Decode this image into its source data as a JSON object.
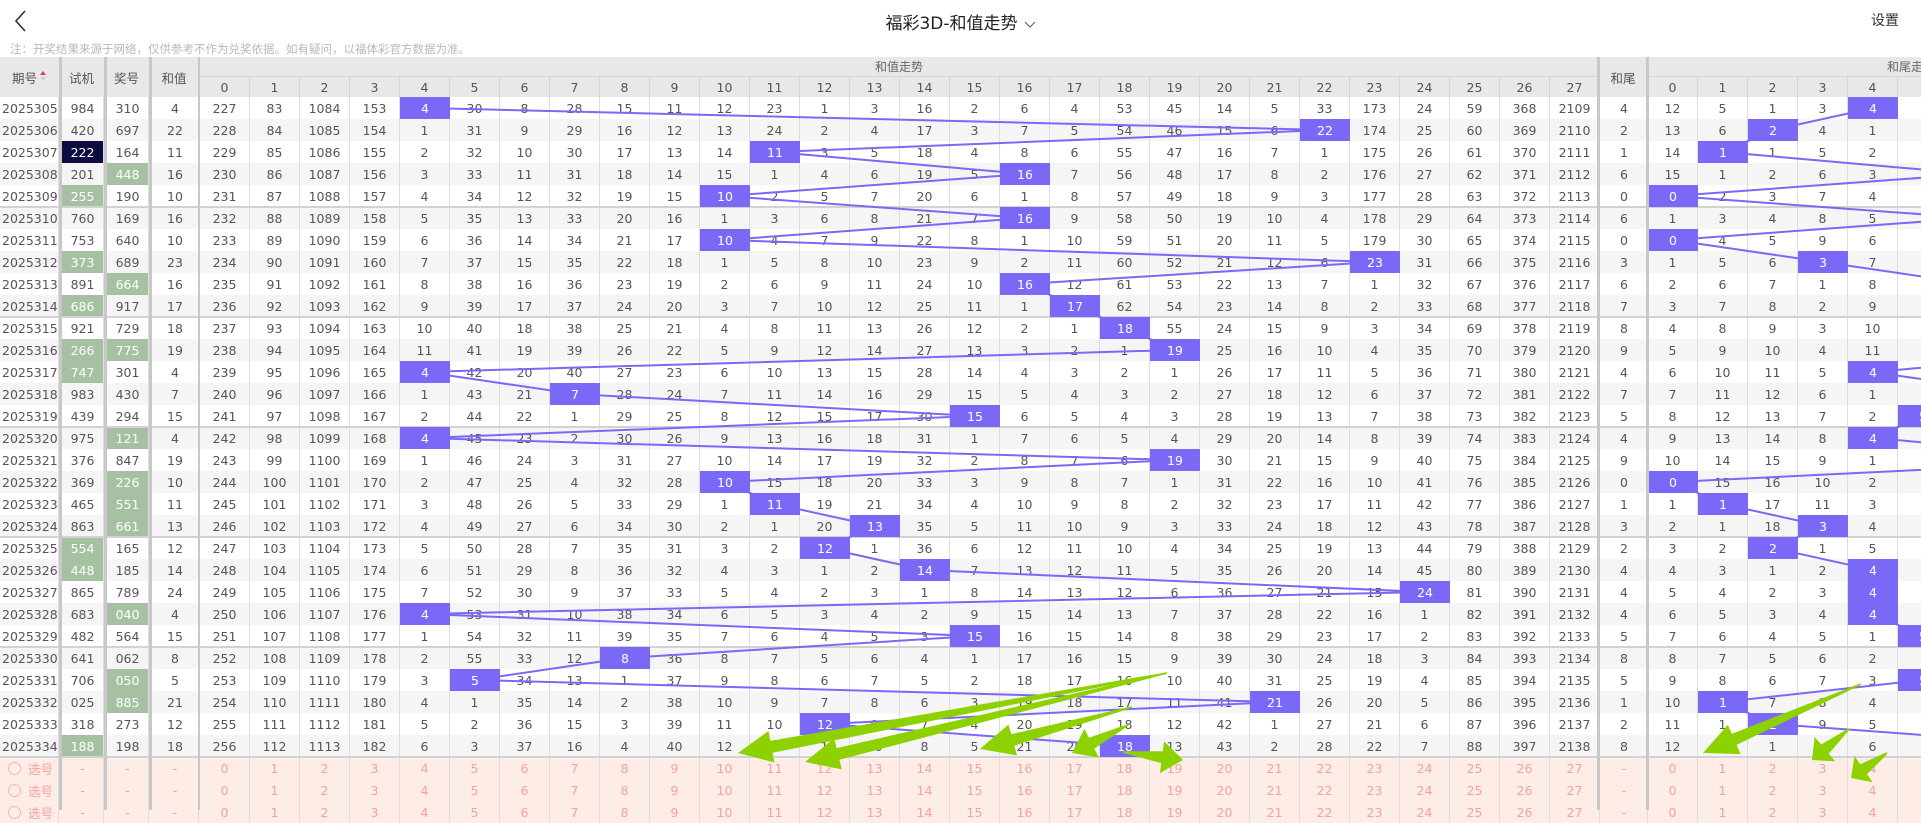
{
  "nav": {
    "back_icon": "chevron-left-icon",
    "title": "福彩3D-和值走势",
    "title_dropdown_icon": "chevron-down-icon",
    "settings": "设置"
  },
  "note": "注：开奖结果来源于网络，仅供参考不作为兑奖依据。如有疑问，以福体彩官方数据为准。",
  "colors": {
    "hit": "#7a69f7",
    "green_mark": "#a5c1a2",
    "dark_mark": "#0c0c40",
    "pick_row_bg": "#fdede6",
    "pick_text": "#f6a0a0",
    "annotation_arrow": "#8ed100"
  },
  "headers": {
    "issue": "期号",
    "sort_icon": "sort-arrows-icon",
    "test": "试机",
    "draw": "奖号",
    "sum": "和值",
    "sum_trend_group": "和值走势",
    "sum_trend_cols": [
      "0",
      "1",
      "2",
      "3",
      "4",
      "5",
      "6",
      "7",
      "8",
      "9",
      "10",
      "11",
      "12",
      "13",
      "14",
      "15",
      "16",
      "17",
      "18",
      "19",
      "20",
      "21",
      "22",
      "23",
      "24",
      "25",
      "26",
      "27"
    ],
    "tail": "和尾",
    "tail_trend_group": "和尾走势",
    "tail_trend_cols": [
      "0",
      "1",
      "2",
      "3",
      "4",
      ""
    ]
  },
  "rows": [
    {
      "issue": "2025305",
      "test": "984",
      "draw": "310",
      "sum": 4,
      "test_mark": "",
      "draw_mark": "",
      "trend": [
        227,
        83,
        1084,
        153,
        4,
        30,
        8,
        28,
        15,
        11,
        12,
        23,
        1,
        3,
        16,
        2,
        6,
        4,
        53,
        45,
        14,
        5,
        33,
        173,
        24,
        59,
        368,
        2109
      ],
      "tail": 4,
      "tail_trend": [
        12,
        5,
        1,
        3,
        4
      ]
    },
    {
      "issue": "2025306",
      "test": "420",
      "draw": "697",
      "sum": 22,
      "test_mark": "",
      "draw_mark": "",
      "trend": [
        228,
        84,
        1085,
        154,
        1,
        31,
        9,
        29,
        16,
        12,
        13,
        24,
        2,
        4,
        17,
        3,
        7,
        5,
        54,
        46,
        15,
        6,
        22,
        174,
        25,
        60,
        369,
        2110
      ],
      "tail": 2,
      "tail_trend": [
        13,
        6,
        2,
        4,
        1
      ]
    },
    {
      "issue": "2025307",
      "test": "222",
      "draw": "164",
      "sum": 11,
      "test_mark": "dark",
      "draw_mark": "",
      "trend": [
        229,
        85,
        1086,
        155,
        2,
        32,
        10,
        30,
        17,
        13,
        14,
        11,
        3,
        5,
        18,
        4,
        8,
        6,
        55,
        47,
        16,
        7,
        1,
        175,
        26,
        61,
        370,
        2111
      ],
      "tail": 1,
      "tail_trend": [
        14,
        1,
        1,
        5,
        2
      ]
    },
    {
      "issue": "2025308",
      "test": "201",
      "draw": "448",
      "sum": 16,
      "test_mark": "",
      "draw_mark": "green",
      "trend": [
        230,
        86,
        1087,
        156,
        3,
        33,
        11,
        31,
        18,
        14,
        15,
        1,
        4,
        6,
        19,
        5,
        16,
        7,
        56,
        48,
        17,
        8,
        2,
        176,
        27,
        62,
        371,
        2112
      ],
      "tail": 6,
      "tail_trend": [
        15,
        1,
        2,
        6,
        3
      ]
    },
    {
      "issue": "2025309",
      "test": "255",
      "draw": "190",
      "sum": 10,
      "test_mark": "green",
      "draw_mark": "",
      "trend": [
        231,
        87,
        1088,
        157,
        4,
        34,
        12,
        32,
        19,
        15,
        10,
        2,
        5,
        7,
        20,
        6,
        1,
        8,
        57,
        49,
        18,
        9,
        3,
        177,
        28,
        63,
        372,
        2113
      ],
      "tail": 0,
      "tail_trend": [
        0,
        2,
        3,
        7,
        4
      ]
    },
    {
      "issue": "2025310",
      "test": "760",
      "draw": "169",
      "sum": 16,
      "test_mark": "",
      "draw_mark": "",
      "trend": [
        232,
        88,
        1089,
        158,
        5,
        35,
        13,
        33,
        20,
        16,
        1,
        3,
        6,
        8,
        21,
        7,
        16,
        9,
        58,
        50,
        19,
        10,
        4,
        178,
        29,
        64,
        373,
        2114
      ],
      "tail": 6,
      "tail_trend": [
        1,
        3,
        4,
        8,
        5
      ]
    },
    {
      "issue": "2025311",
      "test": "753",
      "draw": "640",
      "sum": 10,
      "test_mark": "",
      "draw_mark": "",
      "trend": [
        233,
        89,
        1090,
        159,
        6,
        36,
        14,
        34,
        21,
        17,
        10,
        4,
        7,
        9,
        22,
        8,
        1,
        10,
        59,
        51,
        20,
        11,
        5,
        179,
        30,
        65,
        374,
        2115
      ],
      "tail": 0,
      "tail_trend": [
        0,
        4,
        5,
        9,
        6
      ]
    },
    {
      "issue": "2025312",
      "test": "373",
      "draw": "689",
      "sum": 23,
      "test_mark": "green",
      "draw_mark": "",
      "trend": [
        234,
        90,
        1091,
        160,
        7,
        37,
        15,
        35,
        22,
        18,
        1,
        5,
        8,
        10,
        23,
        9,
        2,
        11,
        60,
        52,
        21,
        12,
        6,
        23,
        31,
        66,
        375,
        2116
      ],
      "tail": 3,
      "tail_trend": [
        1,
        5,
        6,
        3,
        7
      ]
    },
    {
      "issue": "2025313",
      "test": "891",
      "draw": "664",
      "sum": 16,
      "test_mark": "",
      "draw_mark": "green",
      "trend": [
        235,
        91,
        1092,
        161,
        8,
        38,
        16,
        36,
        23,
        19,
        2,
        6,
        9,
        11,
        24,
        10,
        16,
        12,
        61,
        53,
        22,
        13,
        7,
        1,
        32,
        67,
        376,
        2117
      ],
      "tail": 6,
      "tail_trend": [
        2,
        6,
        7,
        1,
        8
      ]
    },
    {
      "issue": "2025314",
      "test": "686",
      "draw": "917",
      "sum": 17,
      "test_mark": "green",
      "draw_mark": "",
      "trend": [
        236,
        92,
        1093,
        162,
        9,
        39,
        17,
        37,
        24,
        20,
        3,
        7,
        10,
        12,
        25,
        11,
        1,
        17,
        62,
        54,
        23,
        14,
        8,
        2,
        33,
        68,
        377,
        2118
      ],
      "tail": 7,
      "tail_trend": [
        3,
        7,
        8,
        2,
        9
      ]
    },
    {
      "issue": "2025315",
      "test": "921",
      "draw": "729",
      "sum": 18,
      "test_mark": "",
      "draw_mark": "",
      "trend": [
        237,
        93,
        1094,
        163,
        10,
        40,
        18,
        38,
        25,
        21,
        4,
        8,
        11,
        13,
        26,
        12,
        2,
        1,
        18,
        55,
        24,
        15,
        9,
        3,
        34,
        69,
        378,
        2119
      ],
      "tail": 8,
      "tail_trend": [
        4,
        8,
        9,
        3,
        10
      ]
    },
    {
      "issue": "2025316",
      "test": "266",
      "draw": "775",
      "sum": 19,
      "test_mark": "green",
      "draw_mark": "green",
      "trend": [
        238,
        94,
        1095,
        164,
        11,
        41,
        19,
        39,
        26,
        22,
        5,
        9,
        12,
        14,
        27,
        13,
        3,
        2,
        1,
        19,
        25,
        16,
        10,
        4,
        35,
        70,
        379,
        2120
      ],
      "tail": 9,
      "tail_trend": [
        5,
        9,
        10,
        4,
        11
      ]
    },
    {
      "issue": "2025317",
      "test": "747",
      "draw": "301",
      "sum": 4,
      "test_mark": "green",
      "draw_mark": "",
      "trend": [
        239,
        95,
        1096,
        165,
        4,
        42,
        20,
        40,
        27,
        23,
        6,
        10,
        13,
        15,
        28,
        14,
        4,
        3,
        2,
        1,
        26,
        17,
        11,
        5,
        36,
        71,
        380,
        2121
      ],
      "tail": 4,
      "tail_trend": [
        6,
        10,
        11,
        5,
        4
      ]
    },
    {
      "issue": "2025318",
      "test": "983",
      "draw": "430",
      "sum": 7,
      "test_mark": "",
      "draw_mark": "",
      "trend": [
        240,
        96,
        1097,
        166,
        1,
        43,
        21,
        7,
        28,
        24,
        7,
        11,
        14,
        16,
        29,
        15,
        5,
        4,
        3,
        2,
        27,
        18,
        12,
        6,
        37,
        72,
        381,
        2122
      ],
      "tail": 7,
      "tail_trend": [
        7,
        11,
        12,
        6,
        1
      ]
    },
    {
      "issue": "2025319",
      "test": "439",
      "draw": "294",
      "sum": 15,
      "test_mark": "",
      "draw_mark": "",
      "trend": [
        241,
        97,
        1098,
        167,
        2,
        44,
        22,
        1,
        29,
        25,
        8,
        12,
        15,
        17,
        30,
        15,
        6,
        5,
        4,
        3,
        28,
        19,
        13,
        7,
        38,
        73,
        382,
        2123
      ],
      "tail": 5,
      "tail_trend": [
        8,
        12,
        13,
        7,
        2
      ]
    },
    {
      "issue": "2025320",
      "test": "975",
      "draw": "121",
      "sum": 4,
      "test_mark": "",
      "draw_mark": "green",
      "trend": [
        242,
        98,
        1099,
        168,
        4,
        45,
        23,
        2,
        30,
        26,
        9,
        13,
        16,
        18,
        31,
        1,
        7,
        6,
        5,
        4,
        29,
        20,
        14,
        8,
        39,
        74,
        383,
        2124
      ],
      "tail": 4,
      "tail_trend": [
        9,
        13,
        14,
        8,
        4
      ]
    },
    {
      "issue": "2025321",
      "test": "376",
      "draw": "847",
      "sum": 19,
      "test_mark": "",
      "draw_mark": "",
      "trend": [
        243,
        99,
        1100,
        169,
        1,
        46,
        24,
        3,
        31,
        27,
        10,
        14,
        17,
        19,
        32,
        2,
        8,
        7,
        6,
        19,
        30,
        21,
        15,
        9,
        40,
        75,
        384,
        2125
      ],
      "tail": 9,
      "tail_trend": [
        10,
        14,
        15,
        9,
        1
      ]
    },
    {
      "issue": "2025322",
      "test": "369",
      "draw": "226",
      "sum": 10,
      "test_mark": "",
      "draw_mark": "green",
      "trend": [
        244,
        100,
        1101,
        170,
        2,
        47,
        25,
        4,
        32,
        28,
        10,
        15,
        18,
        20,
        33,
        3,
        9,
        8,
        7,
        1,
        31,
        22,
        16,
        10,
        41,
        76,
        385,
        2126
      ],
      "tail": 0,
      "tail_trend": [
        0,
        15,
        16,
        10,
        2
      ]
    },
    {
      "issue": "2025323",
      "test": "465",
      "draw": "551",
      "sum": 11,
      "test_mark": "",
      "draw_mark": "green",
      "trend": [
        245,
        101,
        1102,
        171,
        3,
        48,
        26,
        5,
        33,
        29,
        1,
        11,
        19,
        21,
        34,
        4,
        10,
        9,
        8,
        2,
        32,
        23,
        17,
        11,
        42,
        77,
        386,
        2127
      ],
      "tail": 1,
      "tail_trend": [
        1,
        1,
        17,
        11,
        3
      ]
    },
    {
      "issue": "2025324",
      "test": "863",
      "draw": "661",
      "sum": 13,
      "test_mark": "",
      "draw_mark": "green",
      "trend": [
        246,
        102,
        1103,
        172,
        4,
        49,
        27,
        6,
        34,
        30,
        2,
        1,
        20,
        13,
        35,
        5,
        11,
        10,
        9,
        3,
        33,
        24,
        18,
        12,
        43,
        78,
        387,
        2128
      ],
      "tail": 3,
      "tail_trend": [
        2,
        1,
        18,
        3,
        4
      ]
    },
    {
      "issue": "2025325",
      "test": "554",
      "draw": "165",
      "sum": 12,
      "test_mark": "green",
      "draw_mark": "",
      "trend": [
        247,
        103,
        1104,
        173,
        5,
        50,
        28,
        7,
        35,
        31,
        3,
        2,
        12,
        1,
        36,
        6,
        12,
        11,
        10,
        4,
        34,
        25,
        19,
        13,
        44,
        79,
        388,
        2129
      ],
      "tail": 2,
      "tail_trend": [
        3,
        2,
        2,
        1,
        5
      ]
    },
    {
      "issue": "2025326",
      "test": "448",
      "draw": "185",
      "sum": 14,
      "test_mark": "green",
      "draw_mark": "",
      "trend": [
        248,
        104,
        1105,
        174,
        6,
        51,
        29,
        8,
        36,
        32,
        4,
        3,
        1,
        2,
        14,
        7,
        13,
        12,
        11,
        5,
        35,
        26,
        20,
        14,
        45,
        80,
        389,
        2130
      ],
      "tail": 4,
      "tail_trend": [
        4,
        3,
        1,
        2,
        4
      ]
    },
    {
      "issue": "2025327",
      "test": "865",
      "draw": "789",
      "sum": 24,
      "test_mark": "",
      "draw_mark": "",
      "trend": [
        249,
        105,
        1106,
        175,
        7,
        52,
        30,
        9,
        37,
        33,
        5,
        4,
        2,
        3,
        1,
        8,
        14,
        13,
        12,
        6,
        36,
        27,
        21,
        15,
        24,
        81,
        390,
        2131
      ],
      "tail": 4,
      "tail_trend": [
        5,
        4,
        2,
        3,
        4
      ]
    },
    {
      "issue": "2025328",
      "test": "683",
      "draw": "040",
      "sum": 4,
      "test_mark": "",
      "draw_mark": "green",
      "trend": [
        250,
        106,
        1107,
        176,
        4,
        53,
        31,
        10,
        38,
        34,
        6,
        5,
        3,
        4,
        2,
        9,
        15,
        14,
        13,
        7,
        37,
        28,
        22,
        16,
        1,
        82,
        391,
        2132
      ],
      "tail": 4,
      "tail_trend": [
        6,
        5,
        3,
        4,
        4
      ]
    },
    {
      "issue": "2025329",
      "test": "482",
      "draw": "564",
      "sum": 15,
      "test_mark": "",
      "draw_mark": "",
      "trend": [
        251,
        107,
        1108,
        177,
        1,
        54,
        32,
        11,
        39,
        35,
        7,
        6,
        4,
        5,
        3,
        15,
        16,
        15,
        14,
        8,
        38,
        29,
        23,
        17,
        2,
        83,
        392,
        2133
      ],
      "tail": 5,
      "tail_trend": [
        7,
        6,
        4,
        5,
        1
      ]
    },
    {
      "issue": "2025330",
      "test": "641",
      "draw": "062",
      "sum": 8,
      "test_mark": "",
      "draw_mark": "",
      "trend": [
        252,
        108,
        1109,
        178,
        2,
        55,
        33,
        12,
        8,
        36,
        8,
        7,
        5,
        6,
        4,
        1,
        17,
        16,
        15,
        9,
        39,
        30,
        24,
        18,
        3,
        84,
        393,
        2134
      ],
      "tail": 8,
      "tail_trend": [
        8,
        7,
        5,
        6,
        2
      ]
    },
    {
      "issue": "2025331",
      "test": "706",
      "draw": "050",
      "sum": 5,
      "test_mark": "",
      "draw_mark": "green",
      "trend": [
        253,
        109,
        1110,
        179,
        3,
        5,
        34,
        13,
        1,
        37,
        9,
        8,
        6,
        7,
        5,
        2,
        18,
        17,
        16,
        10,
        40,
        31,
        25,
        19,
        4,
        85,
        394,
        2135
      ],
      "tail": 5,
      "tail_trend": [
        9,
        8,
        6,
        7,
        3
      ]
    },
    {
      "issue": "2025332",
      "test": "025",
      "draw": "885",
      "sum": 21,
      "test_mark": "",
      "draw_mark": "green",
      "trend": [
        254,
        110,
        1111,
        180,
        4,
        1,
        35,
        14,
        2,
        38,
        10,
        9,
        7,
        8,
        6,
        3,
        19,
        18,
        17,
        11,
        41,
        21,
        26,
        20,
        5,
        86,
        395,
        2136
      ],
      "tail": 1,
      "tail_trend": [
        10,
        1,
        7,
        8,
        4
      ]
    },
    {
      "issue": "2025333",
      "test": "318",
      "draw": "273",
      "sum": 12,
      "test_mark": "",
      "draw_mark": "",
      "trend": [
        255,
        111,
        1112,
        181,
        5,
        2,
        36,
        15,
        3,
        39,
        11,
        10,
        12,
        9,
        7,
        4,
        20,
        19,
        18,
        12,
        42,
        1,
        27,
        21,
        6,
        87,
        396,
        2137
      ],
      "tail": 2,
      "tail_trend": [
        11,
        1,
        2,
        9,
        5
      ]
    },
    {
      "issue": "2025334",
      "test": "188",
      "draw": "198",
      "sum": 18,
      "test_mark": "green",
      "draw_mark": "",
      "trend": [
        256,
        112,
        1113,
        182,
        6,
        3,
        37,
        16,
        4,
        40,
        12,
        11,
        1,
        10,
        8,
        5,
        21,
        20,
        18,
        13,
        43,
        2,
        28,
        22,
        7,
        88,
        397,
        2138
      ],
      "tail": 8,
      "tail_trend": [
        12,
        2,
        1,
        10,
        6
      ]
    }
  ],
  "pick_rows": [
    {
      "label": "选号",
      "test": "-",
      "draw": "-",
      "sum": "-",
      "tail": "-",
      "icon": "radio-circle-icon"
    },
    {
      "label": "选号",
      "test": "-",
      "draw": "-",
      "sum": "-",
      "tail": "-",
      "icon": "radio-circle-icon"
    },
    {
      "label": "选号",
      "test": "-",
      "draw": "-",
      "sum": "-",
      "tail": "-",
      "icon": "radio-circle-icon"
    }
  ]
}
